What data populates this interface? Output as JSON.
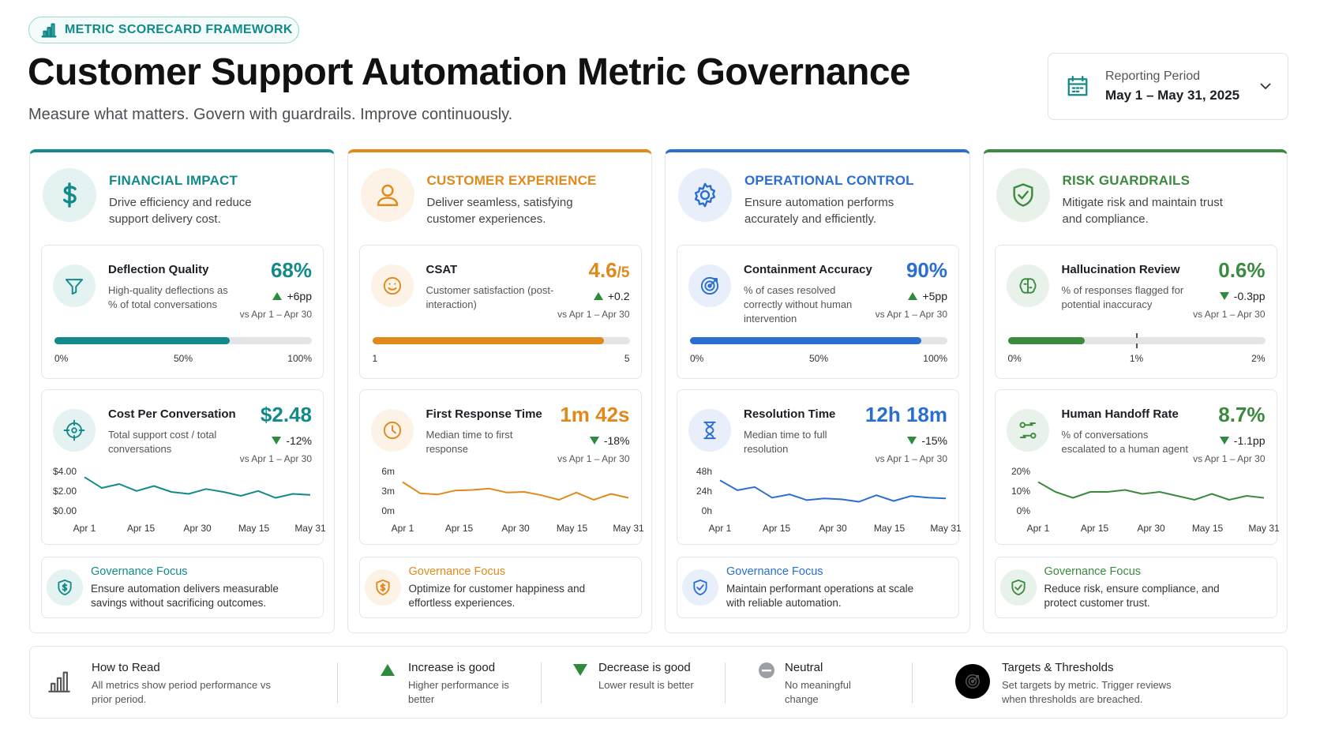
{
  "header": {
    "badge": "METRIC SCORECARD FRAMEWORK",
    "title": "Customer Support Automation Metric Governance",
    "subtitle": "Measure what matters. Govern with guardrails. Improve continuously.",
    "period_label": "Reporting Period",
    "period_value": "May 1 – May 31, 2025"
  },
  "columns": [
    {
      "title": "FINANCIAL IMPACT",
      "description": "Drive efficiency and reduce support delivery cost.",
      "color": "#138a8a",
      "metrics": [
        {
          "name": "Deflection Quality",
          "description": "High-quality deflections as % of total conversations",
          "value_label": "68%",
          "delta": "+6pp",
          "direction": "up",
          "comparison": "vs Apr 1 – Apr 30",
          "bar": {
            "value": 68,
            "lim": [
              0,
              100
            ],
            "ticks": [
              {
                "value": 0,
                "label": "0%"
              },
              {
                "value": 50,
                "label": "50%"
              },
              {
                "value": 100,
                "label": "100%"
              }
            ]
          }
        },
        {
          "name": "Cost Per Conversation",
          "description": "Total support cost / total conversations",
          "value_label": "$2.48",
          "delta": "-12%",
          "direction": "down",
          "comparison": "vs Apr 1 – Apr 30",
          "trend": {
            "values": [
              3.5,
              2.4,
              2.8,
              2.1,
              2.6,
              2.0,
              1.8,
              2.3,
              2.0,
              1.6,
              2.1,
              1.4,
              1.8,
              1.7
            ],
            "ylim": [
              0,
              4
            ],
            "yticks": [
              {
                "value": 4,
                "label": "$4.00"
              },
              {
                "value": 2,
                "label": "$2.00"
              },
              {
                "value": 0,
                "label": "$0.00"
              }
            ],
            "xticks": [
              {
                "value": 0,
                "label": "Apr 1"
              },
              {
                "value": 3.25,
                "label": "Apr 15"
              },
              {
                "value": 6.5,
                "label": "Apr 30"
              },
              {
                "value": 9.75,
                "label": "May 15"
              },
              {
                "value": 13,
                "label": "May 31"
              }
            ]
          }
        }
      ],
      "governance": {
        "title": "Governance Focus",
        "text": "Ensure automation delivers measurable savings without sacrificing outcomes."
      }
    },
    {
      "title": "CUSTOMER EXPERIENCE",
      "description": "Deliver seamless, satisfying customer experiences.",
      "color": "#e08a1c",
      "metrics": [
        {
          "name": "CSAT",
          "description": "Customer satisfaction (post-interaction)",
          "value_label": "4.6",
          "value_suffix": "/5",
          "delta": "+0.2",
          "direction": "up",
          "comparison": "vs Apr 1 – Apr 30",
          "bar": {
            "value": 4.6,
            "lim": [
              1,
              5
            ],
            "ticks": [
              1,
              5
            ]
          }
        },
        {
          "name": "First Response Time",
          "description": "Median time to first response",
          "value_label": "1m 42s",
          "delta": "-18%",
          "direction": "down",
          "comparison": "vs Apr 1 – Apr 30",
          "trend": {
            "values": [
              4.5,
              2.8,
              2.6,
              3.2,
              3.3,
              3.5,
              2.9,
              3.0,
              2.5,
              1.8,
              2.9,
              1.8,
              2.7,
              2.1
            ],
            "ylim": [
              0,
              6
            ],
            "yticks": [
              {
                "value": 6,
                "label": "6m"
              },
              {
                "value": 3,
                "label": "3m"
              },
              {
                "value": 0,
                "label": "0m"
              }
            ],
            "xticks": [
              {
                "value": 0,
                "label": "Apr 1"
              },
              {
                "value": 3.25,
                "label": "Apr 15"
              },
              {
                "value": 6.5,
                "label": "Apr 30"
              },
              {
                "value": 9.75,
                "label": "May 15"
              },
              {
                "value": 13,
                "label": "May 31"
              }
            ]
          }
        }
      ],
      "governance": {
        "title": "Governance Focus",
        "text": "Optimize for customer happiness and effortless experiences."
      }
    },
    {
      "title": "OPERATIONAL CONTROL",
      "description": "Ensure automation performs accurately and efficiently.",
      "color": "#2a6fd0",
      "metrics": [
        {
          "name": "Containment Accuracy",
          "description": "% of cases resolved correctly without human intervention",
          "value_label": "90%",
          "delta": "+5pp",
          "direction": "up",
          "comparison": "vs Apr 1 – Apr 30",
          "bar": {
            "value": 90,
            "lim": [
              0,
              100
            ],
            "ticks": [
              {
                "value": 0,
                "label": "0%"
              },
              {
                "value": 50,
                "label": "50%"
              },
              {
                "value": 100,
                "label": "100%"
              }
            ]
          }
        },
        {
          "name": "Resolution Time",
          "description": "Median time to full resolution",
          "value_label": "12h 18m",
          "delta": "-15%",
          "direction": "down",
          "comparison": "vs Apr 1 – Apr 30",
          "trend": {
            "values": [
              38,
              26,
              30,
              17,
              21,
              14,
              16,
              15,
              12,
              20,
              13,
              19,
              17,
              16
            ],
            "ylim": [
              0,
              48
            ],
            "yticks": [
              {
                "value": 48,
                "label": "48h"
              },
              {
                "value": 24,
                "label": "24h"
              },
              {
                "value": 0,
                "label": "0h"
              }
            ],
            "xticks": [
              {
                "value": 0,
                "label": "Apr 1"
              },
              {
                "value": 3.25,
                "label": "Apr 15"
              },
              {
                "value": 6.5,
                "label": "Apr 30"
              },
              {
                "value": 9.75,
                "label": "May 15"
              },
              {
                "value": 13,
                "label": "May 31"
              }
            ]
          }
        }
      ],
      "governance": {
        "title": "Governance Focus",
        "text": "Maintain performant operations at scale with reliable automation."
      }
    },
    {
      "title": "RISK GUARDRAILS",
      "description": "Mitigate risk and maintain trust and compliance.",
      "color": "#3b8a3e",
      "metrics": [
        {
          "name": "Hallucination Review",
          "description": "% of responses flagged for potential inaccuracy",
          "value_label": "0.6%",
          "delta": "-0.3pp",
          "direction": "down",
          "comparison": "vs Apr 1 – Apr 30",
          "bar": {
            "value": 0.6,
            "lim": [
              0,
              2
            ],
            "threshold": 1,
            "ticks": [
              {
                "value": 0,
                "label": "0%"
              },
              {
                "value": 1,
                "label": "1%"
              },
              {
                "value": 2,
                "label": "2%"
              }
            ]
          }
        },
        {
          "name": "Human Handoff Rate",
          "description": "% of conversations escalated to a human agent",
          "value_label": "8.7%",
          "delta": "-1.1pp",
          "direction": "down",
          "comparison": "vs Apr 1 – Apr 30",
          "trend": {
            "values": [
              15,
              10,
              7,
              10,
              10,
              11,
              9,
              10,
              8,
              6,
              9,
              6,
              8,
              7
            ],
            "ylim": [
              0,
              20
            ],
            "yticks": [
              {
                "value": 20,
                "label": "20%"
              },
              {
                "value": 10,
                "label": "10%"
              },
              {
                "value": 0,
                "label": "0%"
              }
            ],
            "xticks": [
              {
                "value": 0,
                "label": "Apr 1"
              },
              {
                "value": 3.25,
                "label": "Apr 15"
              },
              {
                "value": 6.5,
                "label": "Apr 30"
              },
              {
                "value": 9.75,
                "label": "May 15"
              },
              {
                "value": 13,
                "label": "May 31"
              }
            ]
          }
        }
      ],
      "governance": {
        "title": "Governance Focus",
        "text": "Reduce risk, ensure compliance, and protect customer trust."
      }
    }
  ],
  "legend": [
    {
      "title": "How to Read",
      "text": "All metrics show period performance vs prior period."
    },
    {
      "title": "Increase is good",
      "text": "Higher performance is better"
    },
    {
      "title": "Decrease is good",
      "text": "Lower result is better"
    },
    {
      "title": "Neutral",
      "text": "No meaningful change"
    },
    {
      "title": "Targets & Thresholds",
      "text": "Set targets by metric. Trigger reviews when thresholds are breached."
    }
  ]
}
